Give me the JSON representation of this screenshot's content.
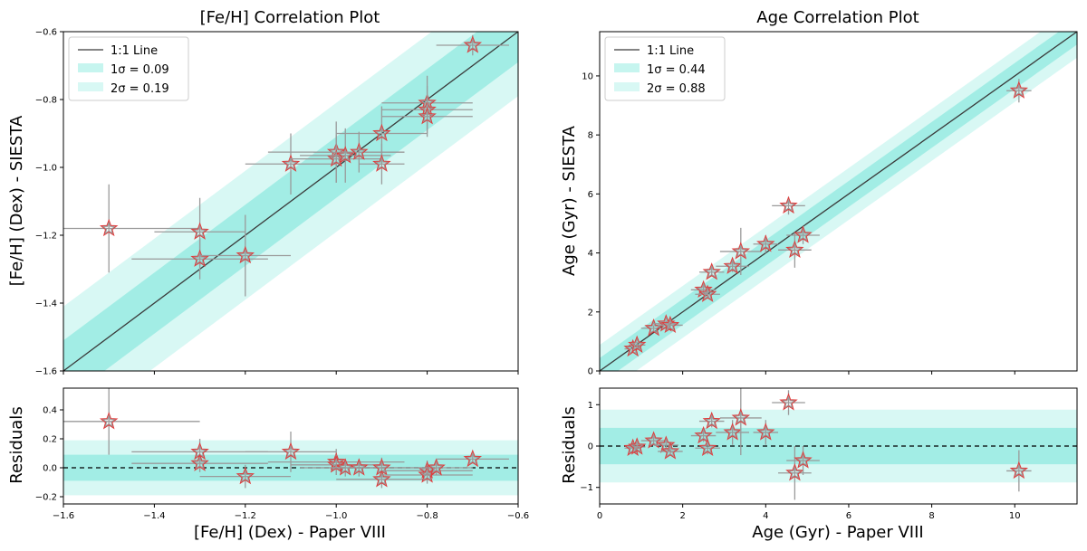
{
  "colors": {
    "band1": "#40d9c8",
    "band2": "#8eebe0",
    "star_edge": "#e03c3c",
    "errbar": "#9a9a9a",
    "line": "#3a3a3a"
  },
  "chart_data": [
    {
      "id": "feh",
      "type": "scatter",
      "title": "[Fe/H] Correlation Plot",
      "xlabel": "[Fe/H] (Dex) - Paper VIII",
      "ylabel": "[Fe/H] (Dex) - SIESTA",
      "residual_label": "Residuals",
      "xlim": [
        -1.6,
        -0.6
      ],
      "ylim": [
        -1.6,
        -0.6
      ],
      "res_ylim": [
        -0.25,
        0.55
      ],
      "xticks": [
        -1.6,
        -1.4,
        -1.2,
        -1.0,
        -0.8,
        -0.6
      ],
      "xtick_labels": [
        "−1.6",
        "−1.4",
        "−1.2",
        "−1.0",
        "−0.8",
        "−0.6"
      ],
      "yticks": [
        -1.6,
        -1.4,
        -1.2,
        -1.0,
        -0.8,
        -0.6
      ],
      "ytick_labels": [
        "−1.6",
        "−1.4",
        "−1.2",
        "−1.0",
        "−0.8",
        "−0.6"
      ],
      "res_yticks": [
        -0.2,
        0.0,
        0.2,
        0.4
      ],
      "res_ytick_labels": [
        "−0.2",
        "0.0",
        "0.2",
        "0.4"
      ],
      "sigma1": 0.09,
      "sigma2": 0.19,
      "legend": [
        "1:1 Line",
        "1σ = 0.09",
        "2σ = 0.19"
      ],
      "points": [
        {
          "x": -1.5,
          "y": -1.18,
          "xerr": 0.2,
          "yerr": 0.13
        },
        {
          "x": -1.3,
          "y": -1.19,
          "xerr": 0.1,
          "yerr": 0.1
        },
        {
          "x": -1.3,
          "y": -1.27,
          "xerr": 0.15,
          "yerr": 0.06
        },
        {
          "x": -1.2,
          "y": -1.26,
          "xerr": 0.1,
          "yerr": 0.12
        },
        {
          "x": -1.1,
          "y": -0.99,
          "xerr": 0.1,
          "yerr": 0.09
        },
        {
          "x": -1.0,
          "y": -0.955,
          "xerr": 0.15,
          "yerr": 0.09
        },
        {
          "x": -1.0,
          "y": -0.975,
          "xerr": 0.1,
          "yerr": 0.07
        },
        {
          "x": -0.98,
          "y": -0.965,
          "xerr": 0.1,
          "yerr": 0.08
        },
        {
          "x": -0.95,
          "y": -0.955,
          "xerr": 0.1,
          "yerr": 0.06
        },
        {
          "x": -0.9,
          "y": -0.9,
          "xerr": 0.1,
          "yerr": 0.08
        },
        {
          "x": -0.9,
          "y": -0.99,
          "xerr": 0.05,
          "yerr": 0.06
        },
        {
          "x": -0.8,
          "y": -0.81,
          "xerr": 0.1,
          "yerr": 0.08
        },
        {
          "x": -0.8,
          "y": -0.83,
          "xerr": 0.1,
          "yerr": 0.07
        },
        {
          "x": -0.8,
          "y": -0.85,
          "xerr": 0.1,
          "yerr": 0.06
        },
        {
          "x": -0.7,
          "y": -0.64,
          "xerr": 0.08,
          "yerr": 0.03
        }
      ],
      "residuals": [
        {
          "x": -1.5,
          "r": 0.32,
          "xerr": 0.2,
          "rerr": 0.23
        },
        {
          "x": -1.3,
          "r": 0.11,
          "xerr": 0.15,
          "rerr": 0.09
        },
        {
          "x": -1.3,
          "r": 0.03,
          "xerr": 0.15,
          "rerr": 0.06
        },
        {
          "x": -1.2,
          "r": -0.06,
          "xerr": 0.1,
          "rerr": 0.08
        },
        {
          "x": -1.1,
          "r": 0.11,
          "xerr": 0.1,
          "rerr": 0.14
        },
        {
          "x": -1.0,
          "r": 0.04,
          "xerr": 0.15,
          "rerr": 0.09
        },
        {
          "x": -1.0,
          "r": 0.02,
          "xerr": 0.1,
          "rerr": 0.07
        },
        {
          "x": -0.98,
          "r": 0.0,
          "xerr": 0.1,
          "rerr": 0.06
        },
        {
          "x": -0.95,
          "r": 0.0,
          "xerr": 0.1,
          "rerr": 0.06
        },
        {
          "x": -0.9,
          "r": 0.0,
          "xerr": 0.1,
          "rerr": 0.07
        },
        {
          "x": -0.9,
          "r": -0.08,
          "xerr": 0.1,
          "rerr": 0.06
        },
        {
          "x": -0.8,
          "r": -0.02,
          "xerr": 0.1,
          "rerr": 0.07
        },
        {
          "x": -0.8,
          "r": -0.05,
          "xerr": 0.1,
          "rerr": 0.06
        },
        {
          "x": -0.78,
          "r": 0.0,
          "xerr": 0.08,
          "rerr": 0.05
        },
        {
          "x": -0.7,
          "r": 0.06,
          "xerr": 0.08,
          "rerr": 0.03
        }
      ]
    },
    {
      "id": "age",
      "type": "scatter",
      "title": "Age Correlation Plot",
      "xlabel": "Age (Gyr) - Paper VIII",
      "ylabel": "Age (Gyr) - SIESTA",
      "residual_label": "Residuals",
      "xlim": [
        0,
        11.5
      ],
      "ylim": [
        0,
        11.5
      ],
      "res_ylim": [
        -1.4,
        1.4
      ],
      "xticks": [
        0,
        2,
        4,
        6,
        8,
        10
      ],
      "xtick_labels": [
        "0",
        "2",
        "4",
        "6",
        "8",
        "10"
      ],
      "yticks": [
        0,
        2,
        4,
        6,
        8,
        10
      ],
      "ytick_labels": [
        "0",
        "2",
        "4",
        "6",
        "8",
        "10"
      ],
      "res_yticks": [
        -1,
        0,
        1
      ],
      "res_ytick_labels": [
        "−1",
        "0",
        "1"
      ],
      "sigma1": 0.44,
      "sigma2": 0.88,
      "legend": [
        "1:1 Line",
        "1σ = 0.44",
        "2σ = 0.88"
      ],
      "points": [
        {
          "x": 0.8,
          "y": 0.75,
          "xerr": 0.2,
          "yerr": 0.1
        },
        {
          "x": 0.9,
          "y": 0.88,
          "xerr": 0.2,
          "yerr": 0.1
        },
        {
          "x": 1.3,
          "y": 1.45,
          "xerr": 0.3,
          "yerr": 0.1
        },
        {
          "x": 1.6,
          "y": 1.6,
          "xerr": 0.3,
          "yerr": 0.1
        },
        {
          "x": 1.7,
          "y": 1.55,
          "xerr": 0.3,
          "yerr": 0.1
        },
        {
          "x": 2.5,
          "y": 2.75,
          "xerr": 0.3,
          "yerr": 0.15
        },
        {
          "x": 2.6,
          "y": 2.6,
          "xerr": 0.3,
          "yerr": 0.15
        },
        {
          "x": 2.7,
          "y": 3.35,
          "xerr": 0.3,
          "yerr": 0.15
        },
        {
          "x": 3.2,
          "y": 3.55,
          "xerr": 0.4,
          "yerr": 0.2
        },
        {
          "x": 3.4,
          "y": 4.05,
          "xerr": 0.5,
          "yerr": 0.8
        },
        {
          "x": 4.0,
          "y": 4.3,
          "xerr": 0.3,
          "yerr": 0.3
        },
        {
          "x": 4.55,
          "y": 5.6,
          "xerr": 0.4,
          "yerr": 0.3
        },
        {
          "x": 4.7,
          "y": 4.1,
          "xerr": 0.4,
          "yerr": 0.6
        },
        {
          "x": 4.9,
          "y": 4.6,
          "xerr": 0.4,
          "yerr": 0.3
        },
        {
          "x": 10.1,
          "y": 9.5,
          "xerr": 0.3,
          "yerr": 0.4
        }
      ],
      "residuals": [
        {
          "x": 0.8,
          "r": -0.05,
          "xerr": 0.2,
          "rerr": 0.1
        },
        {
          "x": 0.9,
          "r": -0.02,
          "xerr": 0.2,
          "rerr": 0.1
        },
        {
          "x": 1.3,
          "r": 0.13,
          "xerr": 0.3,
          "rerr": 0.1
        },
        {
          "x": 1.6,
          "r": 0.02,
          "xerr": 0.3,
          "rerr": 0.1
        },
        {
          "x": 1.7,
          "r": -0.13,
          "xerr": 0.3,
          "rerr": 0.1
        },
        {
          "x": 2.5,
          "r": 0.25,
          "xerr": 0.3,
          "rerr": 0.15
        },
        {
          "x": 2.6,
          "r": -0.05,
          "xerr": 0.3,
          "rerr": 0.15
        },
        {
          "x": 2.7,
          "r": 0.6,
          "xerr": 0.3,
          "rerr": 0.15
        },
        {
          "x": 3.2,
          "r": 0.33,
          "xerr": 0.4,
          "rerr": 0.3
        },
        {
          "x": 3.4,
          "r": 0.68,
          "xerr": 0.5,
          "rerr": 0.9
        },
        {
          "x": 4.0,
          "r": 0.33,
          "xerr": 0.3,
          "rerr": 0.3
        },
        {
          "x": 4.55,
          "r": 1.05,
          "xerr": 0.4,
          "rerr": 0.3
        },
        {
          "x": 4.7,
          "r": -0.65,
          "xerr": 0.4,
          "rerr": 0.65
        },
        {
          "x": 4.9,
          "r": -0.35,
          "xerr": 0.4,
          "rerr": 0.35
        },
        {
          "x": 10.1,
          "r": -0.6,
          "xerr": 0.3,
          "rerr": 0.5
        }
      ]
    }
  ]
}
